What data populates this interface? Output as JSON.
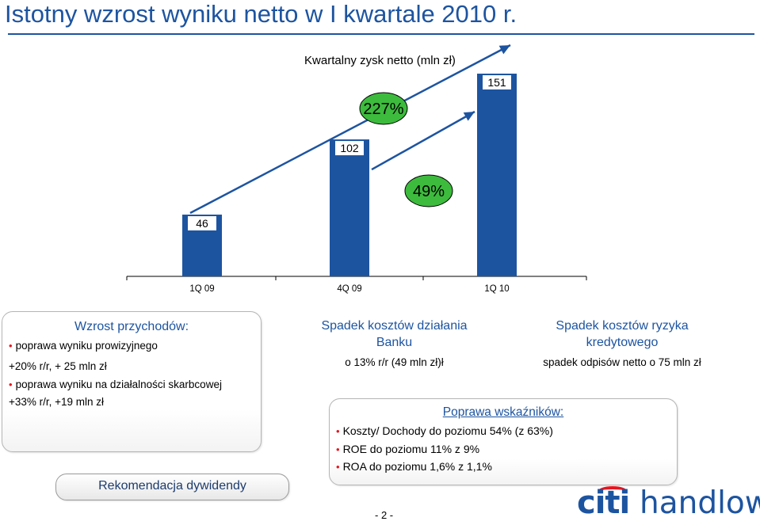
{
  "slide": {
    "title": "Istotny wzrost wyniku netto w I kwartale 2010 r.",
    "page_number": "- 2 -",
    "logo_text_left": "citi",
    "logo_text_right": "handlowy"
  },
  "chart_data": {
    "type": "bar",
    "title": "Kwartalny zysk netto (mln zł)",
    "categories": [
      "1Q 09",
      "4Q 09",
      "1Q 10"
    ],
    "values": [
      46,
      102,
      151
    ],
    "data_labels": [
      "46",
      "102",
      "151"
    ],
    "growth_labels": [
      "227%",
      "49%"
    ],
    "bar_color": "#1d54a0",
    "growth_color": "#3dbb3d",
    "arrow_color": "#1d54a0",
    "ylim": [
      0,
      151
    ]
  },
  "boxes": {
    "revenue": {
      "heading": "Wzrost przychodów:",
      "lines": [
        "poprawa wyniku prowizyjnego",
        "+20% r/r, + 25 mln zł",
        "poprawa wyniku na działalności skarbcowej",
        "+33% r/r, +19 mln zł"
      ]
    },
    "dividend": {
      "label": "Rekomendacja dywidendy"
    },
    "costs": {
      "heading_line1": "Spadek kosztów działania",
      "heading_line2": "Banku",
      "text": "o 13% r/r (49 mln zł)ł"
    },
    "risk": {
      "heading_line1": "Spadek kosztów ryzyka",
      "heading_line2": "kredytowego",
      "text": "spadek odpisów netto o 75 mln zł"
    },
    "ratios": {
      "heading": "Poprawa wskaźników:",
      "lines": [
        "Koszty/ Dochody do poziomu 54% (z 63%)",
        "ROE do poziomu 11% z 9%",
        "ROA do poziomu 1,6% z 1,1%"
      ]
    }
  },
  "colors": {
    "brand_blue": "#1d54a0",
    "bullet_red": "#e8141e"
  }
}
